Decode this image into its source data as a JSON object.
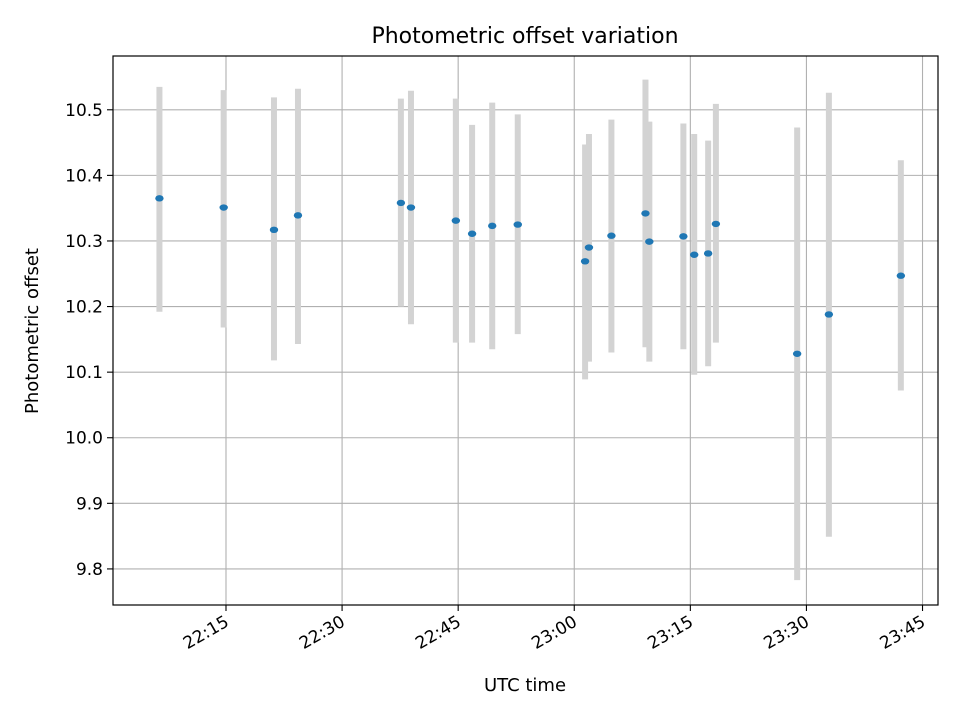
{
  "chart_data": {
    "type": "scatter",
    "title": "Photometric offset variation",
    "xlabel": "UTC time",
    "ylabel": "Photometric offset",
    "xlim": [
      "22:00:24",
      "23:47:00"
    ],
    "ylim": [
      9.745,
      10.582
    ],
    "x_ticks": [
      "22:15",
      "22:30",
      "22:45",
      "23:00",
      "23:15",
      "23:30",
      "23:45"
    ],
    "y_ticks": [
      "9.8",
      "9.9",
      "10.0",
      "10.1",
      "10.2",
      "10.3",
      "10.4",
      "10.5"
    ],
    "grid": true,
    "marker_color": "#1f77b4",
    "errorbar_color": "#d3d3d3",
    "series": [
      {
        "points": [
          {
            "t": "22:06:24",
            "y": 10.365,
            "low": 10.192,
            "high": 10.535
          },
          {
            "t": "22:14:42",
            "y": 10.351,
            "low": 10.168,
            "high": 10.53
          },
          {
            "t": "22:21:12",
            "y": 10.317,
            "low": 10.118,
            "high": 10.519
          },
          {
            "t": "22:24:18",
            "y": 10.339,
            "low": 10.143,
            "high": 10.532
          },
          {
            "t": "22:37:36",
            "y": 10.358,
            "low": 10.2,
            "high": 10.517
          },
          {
            "t": "22:38:54",
            "y": 10.351,
            "low": 10.173,
            "high": 10.529
          },
          {
            "t": "22:44:42",
            "y": 10.331,
            "low": 10.145,
            "high": 10.517
          },
          {
            "t": "22:46:48",
            "y": 10.311,
            "low": 10.145,
            "high": 10.477
          },
          {
            "t": "22:49:24",
            "y": 10.323,
            "low": 10.135,
            "high": 10.511
          },
          {
            "t": "22:52:42",
            "y": 10.325,
            "low": 10.158,
            "high": 10.493
          },
          {
            "t": "23:01:24",
            "y": 10.269,
            "low": 10.089,
            "high": 10.447
          },
          {
            "t": "23:01:54",
            "y": 10.29,
            "low": 10.116,
            "high": 10.463
          },
          {
            "t": "23:04:48",
            "y": 10.308,
            "low": 10.13,
            "high": 10.485
          },
          {
            "t": "23:09:12",
            "y": 10.342,
            "low": 10.138,
            "high": 10.546
          },
          {
            "t": "23:09:42",
            "y": 10.299,
            "low": 10.116,
            "high": 10.482
          },
          {
            "t": "23:14:06",
            "y": 10.307,
            "low": 10.135,
            "high": 10.479
          },
          {
            "t": "23:15:30",
            "y": 10.279,
            "low": 10.096,
            "high": 10.463
          },
          {
            "t": "23:17:18",
            "y": 10.281,
            "low": 10.109,
            "high": 10.453
          },
          {
            "t": "23:18:18",
            "y": 10.326,
            "low": 10.145,
            "high": 10.509
          },
          {
            "t": "23:28:48",
            "y": 10.128,
            "low": 9.783,
            "high": 10.473
          },
          {
            "t": "23:32:54",
            "y": 10.188,
            "low": 9.849,
            "high": 10.526
          },
          {
            "t": "23:42:12",
            "y": 10.247,
            "low": 10.072,
            "high": 10.423
          }
        ]
      }
    ]
  }
}
